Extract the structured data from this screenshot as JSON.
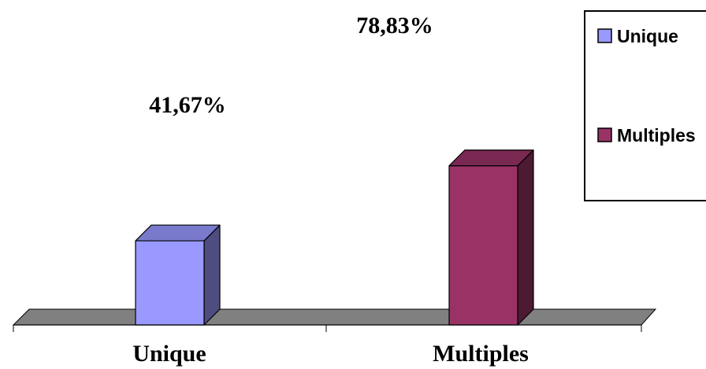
{
  "chart_data": {
    "type": "bar",
    "categories": [
      "Unique",
      "Multiples"
    ],
    "values": [
      41.67,
      78.83
    ],
    "value_labels": [
      "41,67%",
      "78,83%"
    ],
    "ylim": [
      0,
      80
    ],
    "grid": false,
    "legend_placement": "top-right",
    "legend": [
      "Unique",
      "Multiples"
    ],
    "colors": {
      "bar_front": [
        "#9999ff",
        "#993366"
      ],
      "bar_side": [
        "#4d4d80",
        "#4d1a33"
      ],
      "bar_top": [
        "#7a7acc",
        "#7a2952"
      ],
      "floor": "#808080"
    }
  }
}
